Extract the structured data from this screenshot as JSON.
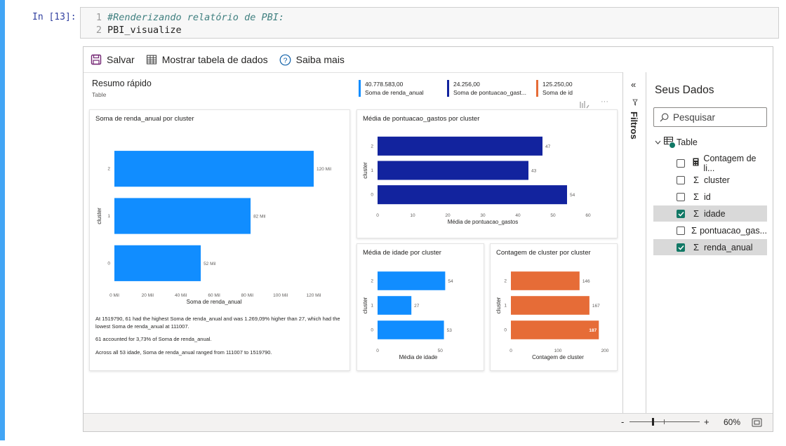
{
  "cell": {
    "prompt": "In [13]:",
    "lines": [
      {
        "num": "1",
        "text": "#Renderizando relatório de PBI:",
        "comment": true
      },
      {
        "num": "2",
        "text": "PBI_visualize",
        "comment": false
      }
    ]
  },
  "toolbar": {
    "save_label": "Salvar",
    "show_table_label": "Mostrar tabela de dados",
    "learn_more_label": "Saiba mais"
  },
  "summary": {
    "title": "Resumo rápido",
    "subtitle": "Table",
    "kpis": [
      {
        "value": "40.778.583,00",
        "label": "Soma de renda_anual",
        "color": "#118dff"
      },
      {
        "value": "24.256,00",
        "label": "Soma de pontuacao_gast...",
        "color": "#12239e"
      },
      {
        "value": "125.250,00",
        "label": "Soma de id",
        "color": "#e66c37"
      }
    ]
  },
  "chart_data": [
    {
      "type": "bar",
      "title": "Soma de renda_anual por cluster",
      "categories": [
        "2",
        "1",
        "0"
      ],
      "values": [
        120,
        82,
        52
      ],
      "data_labels": [
        "120 Mil",
        "82 Mil",
        "52 Mil"
      ],
      "xlabel": "Soma de renda_anual",
      "ylabel": "cluster",
      "xticks": [
        "0 Mil",
        "20 Mil",
        "40 Mil",
        "60 Mil",
        "80 Mil",
        "100 Mil",
        "120 Mil"
      ],
      "xlim": [
        0,
        120
      ],
      "color": "#118dff"
    },
    {
      "type": "bar",
      "title": "Média de pontuacao_gastos por cluster",
      "categories": [
        "2",
        "1",
        "0"
      ],
      "values": [
        47,
        43,
        54
      ],
      "data_labels": [
        "47",
        "43",
        "54"
      ],
      "xlabel": "Média de pontuacao_gastos",
      "ylabel": "cluster",
      "xticks": [
        "0",
        "10",
        "20",
        "30",
        "40",
        "50",
        "60"
      ],
      "xlim": [
        0,
        60
      ],
      "color": "#12239e"
    },
    {
      "type": "bar",
      "title": "Média de idade por cluster",
      "categories": [
        "2",
        "1",
        "0"
      ],
      "values": [
        54,
        27,
        53
      ],
      "data_labels": [
        "54",
        "27",
        "53"
      ],
      "xlabel": "Média de idade",
      "ylabel": "cluster",
      "xticks": [
        "0",
        "50"
      ],
      "xlim": [
        0,
        65
      ],
      "color": "#118dff"
    },
    {
      "type": "bar",
      "title": "Contagem de cluster por cluster",
      "categories": [
        "2",
        "1",
        "0"
      ],
      "values": [
        146,
        167,
        187
      ],
      "data_labels": [
        "146",
        "167",
        "187"
      ],
      "xlabel": "Contagem de cluster",
      "ylabel": "cluster",
      "xticks": [
        "0",
        "100",
        "200"
      ],
      "xlim": [
        0,
        200
      ],
      "color": "#e66c37"
    }
  ],
  "insights": [
    "At 1519790, 61 had the highest Soma de renda_anual and was 1.269,09% higher than 27, which had the lowest Soma de renda_anual at 111007.",
    "61 accounted for 3,73% of Soma de renda_anual.",
    "Across all 53 idade, Soma de renda_anual ranged from 111007 to 1519790."
  ],
  "filters": {
    "label": "Filtros"
  },
  "data_pane": {
    "title": "Seus Dados",
    "search_placeholder": "Pesquisar",
    "table_name": "Table",
    "fields": [
      {
        "label": "Contagem de li...",
        "checked": false,
        "icon": "calculator-icon"
      },
      {
        "label": "cluster",
        "checked": false,
        "icon": "sigma-icon"
      },
      {
        "label": "id",
        "checked": false,
        "icon": "sigma-icon"
      },
      {
        "label": "idade",
        "checked": true,
        "icon": "sigma-icon"
      },
      {
        "label": "pontuacao_gas...",
        "checked": false,
        "icon": "sigma-icon"
      },
      {
        "label": "renda_anual",
        "checked": true,
        "icon": "sigma-icon"
      }
    ]
  },
  "status": {
    "zoom_minus": "-",
    "zoom_plus": "+",
    "zoom_level": "60%",
    "zoom_fraction": 0.33
  }
}
